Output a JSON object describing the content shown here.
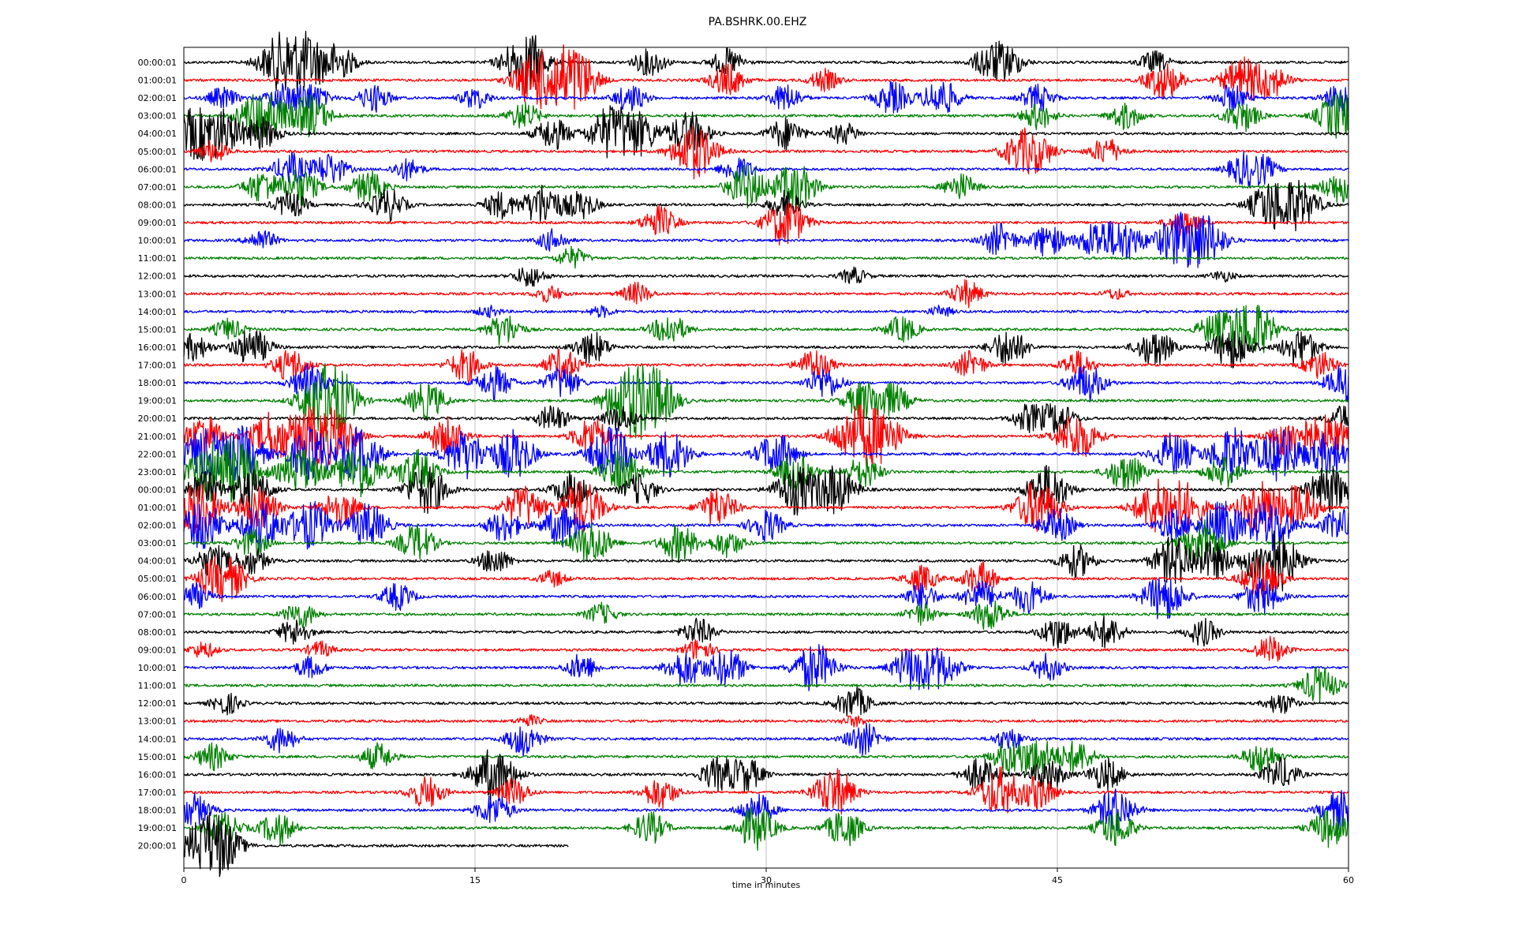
{
  "chart_data": {
    "type": "line",
    "title": "PA.BSHRK.00.EHZ",
    "xlabel": "time in minutes",
    "xlim": [
      0,
      60
    ],
    "xticks": [
      0,
      15,
      30,
      45,
      60
    ],
    "grid": "vertical",
    "color_cycle": [
      "#000000",
      "#ff0000",
      "#0000ff",
      "#008000"
    ],
    "row_labels": [
      "00:00:01",
      "01:00:01",
      "02:00:01",
      "03:00:01",
      "04:00:01",
      "05:00:01",
      "06:00:01",
      "07:00:01",
      "08:00:01",
      "09:00:01",
      "10:00:01",
      "11:00:01",
      "12:00:01",
      "13:00:01",
      "14:00:01",
      "15:00:01",
      "16:00:01",
      "17:00:01",
      "18:00:01",
      "19:00:01",
      "20:00:01",
      "21:00:01",
      "22:00:01",
      "23:00:01",
      "00:00:01",
      "01:00:01",
      "02:00:01",
      "03:00:01",
      "04:00:01",
      "05:00:01",
      "06:00:01",
      "07:00:01",
      "08:00:01",
      "09:00:01",
      "10:00:01",
      "11:00:01",
      "12:00:01",
      "13:00:01",
      "14:00:01",
      "15:00:01",
      "16:00:01",
      "17:00:01",
      "18:00:01",
      "19:00:01",
      "20:00:01"
    ],
    "last_row_end_minute": 19.8,
    "activity": [
      [
        [
          5,
          1
        ],
        [
          6.4,
          0.9
        ],
        [
          8,
          0.6
        ],
        [
          17.3,
          0.8
        ],
        [
          18,
          0.6
        ],
        [
          24,
          0.5
        ],
        [
          28,
          0.5
        ],
        [
          41.5,
          0.6
        ],
        [
          42.5,
          0.5
        ],
        [
          50,
          0.4
        ]
      ],
      [
        [
          18,
          0.9
        ],
        [
          19.5,
          1
        ],
        [
          20.5,
          0.7
        ],
        [
          28,
          0.6
        ],
        [
          33,
          0.4
        ],
        [
          50.5,
          0.7
        ],
        [
          54.5,
          0.8
        ],
        [
          56,
          0.6
        ]
      ],
      [
        [
          2,
          0.4
        ],
        [
          5,
          0.5
        ],
        [
          6.5,
          0.6
        ],
        [
          9.8,
          0.5
        ],
        [
          15,
          0.4
        ],
        [
          23,
          0.5
        ],
        [
          31,
          0.5
        ],
        [
          36.5,
          0.6
        ],
        [
          39,
          0.7
        ],
        [
          44,
          0.5
        ],
        [
          54,
          0.5
        ],
        [
          59.8,
          0.7
        ]
      ],
      [
        [
          3.5,
          0.6
        ],
        [
          4.5,
          0.7
        ],
        [
          6.5,
          0.8
        ],
        [
          17.5,
          0.5
        ],
        [
          44,
          0.5
        ],
        [
          48.5,
          0.5
        ],
        [
          54.5,
          0.6
        ],
        [
          59.5,
          0.9
        ]
      ],
      [
        [
          0.5,
          0.9
        ],
        [
          2,
          0.8
        ],
        [
          4,
          0.6
        ],
        [
          19,
          0.6
        ],
        [
          22,
          1
        ],
        [
          23.5,
          0.7
        ],
        [
          26,
          0.8
        ],
        [
          31,
          0.6
        ],
        [
          34,
          0.4
        ]
      ],
      [
        [
          1.5,
          0.4
        ],
        [
          26.3,
          1
        ],
        [
          43,
          0.6
        ],
        [
          44,
          0.6
        ],
        [
          47.5,
          0.5
        ]
      ],
      [
        [
          5.5,
          0.6
        ],
        [
          7.5,
          0.6
        ],
        [
          11.5,
          0.4
        ],
        [
          28.5,
          0.5
        ],
        [
          54.5,
          0.5
        ],
        [
          55.5,
          0.5
        ]
      ],
      [
        [
          4,
          0.6
        ],
        [
          6,
          0.7
        ],
        [
          9.5,
          0.6
        ],
        [
          29,
          0.8
        ],
        [
          31.5,
          0.9
        ],
        [
          40,
          0.5
        ],
        [
          59.5,
          0.6
        ]
      ],
      [
        [
          5.5,
          0.5
        ],
        [
          10.5,
          0.6
        ],
        [
          16.3,
          0.5
        ],
        [
          18.5,
          0.8
        ],
        [
          20.5,
          0.5
        ],
        [
          31,
          0.5
        ],
        [
          56,
          0.9
        ],
        [
          57.5,
          0.8
        ]
      ],
      [
        [
          24.5,
          0.6
        ],
        [
          31,
          0.9
        ],
        [
          51.5,
          0.5
        ]
      ],
      [
        [
          4,
          0.4
        ],
        [
          19,
          0.4
        ],
        [
          42,
          0.6
        ],
        [
          44.5,
          0.6
        ],
        [
          47,
          0.7
        ],
        [
          48.5,
          0.7
        ],
        [
          51,
          0.8
        ],
        [
          52.5,
          1
        ]
      ],
      [
        [
          20,
          0.4
        ]
      ],
      [
        [
          17.8,
          0.4
        ],
        [
          34.5,
          0.3
        ],
        [
          53.5,
          0.2
        ]
      ],
      [
        [
          18.8,
          0.3
        ],
        [
          23.3,
          0.4
        ],
        [
          40.3,
          0.5
        ],
        [
          48,
          0.2
        ]
      ],
      [
        [
          15.7,
          0.2
        ],
        [
          21.5,
          0.2
        ],
        [
          39,
          0.2
        ]
      ],
      [
        [
          2.3,
          0.4
        ],
        [
          16.5,
          0.6
        ],
        [
          25,
          0.6
        ],
        [
          37,
          0.5
        ],
        [
          53,
          0.5
        ],
        [
          54.5,
          0.9
        ],
        [
          55.5,
          0.6
        ]
      ],
      [
        [
          0.5,
          0.5
        ],
        [
          3.5,
          0.7
        ],
        [
          21,
          0.6
        ],
        [
          42.5,
          0.7
        ],
        [
          50,
          0.7
        ],
        [
          54,
          0.8
        ],
        [
          57.5,
          0.7
        ]
      ],
      [
        [
          5.5,
          0.6
        ],
        [
          14.5,
          0.6
        ],
        [
          19.5,
          0.6
        ],
        [
          32.5,
          0.6
        ],
        [
          40.5,
          0.5
        ],
        [
          46,
          0.5
        ],
        [
          58.5,
          0.5
        ]
      ],
      [
        [
          6.5,
          0.7
        ],
        [
          16,
          0.6
        ],
        [
          19.5,
          0.6
        ],
        [
          33,
          0.6
        ],
        [
          46.5,
          0.7
        ],
        [
          59.8,
          0.7
        ]
      ],
      [
        [
          7,
          1
        ],
        [
          8,
          0.9
        ],
        [
          12.5,
          0.7
        ],
        [
          22.5,
          0.8
        ],
        [
          23.5,
          0.9
        ],
        [
          24.5,
          0.8
        ],
        [
          35,
          0.7
        ],
        [
          36.5,
          0.6
        ]
      ],
      [
        [
          19,
          0.5
        ],
        [
          22.5,
          0.5
        ],
        [
          43.5,
          0.5
        ],
        [
          45,
          0.6
        ],
        [
          59.8,
          0.5
        ]
      ],
      [
        [
          1,
          0.8
        ],
        [
          4.5,
          0.9
        ],
        [
          6.5,
          1
        ],
        [
          8,
          0.8
        ],
        [
          13.5,
          0.7
        ],
        [
          21,
          0.7
        ],
        [
          34.5,
          1
        ],
        [
          36,
          0.9
        ],
        [
          46,
          0.9
        ],
        [
          57,
          0.9
        ],
        [
          59,
          0.8
        ]
      ],
      [
        [
          1,
          0.9
        ],
        [
          3,
          1
        ],
        [
          6.5,
          1
        ],
        [
          9,
          1
        ],
        [
          14.5,
          0.9
        ],
        [
          17,
          0.9
        ],
        [
          22,
          1
        ],
        [
          25,
          0.9
        ],
        [
          30.5,
          0.8
        ],
        [
          51,
          0.8
        ],
        [
          54,
          1
        ],
        [
          56.5,
          1
        ],
        [
          59,
          0.8
        ]
      ],
      [
        [
          1.2,
          1
        ],
        [
          2.8,
          1
        ],
        [
          6,
          0.9
        ],
        [
          9,
          1
        ],
        [
          12,
          0.8
        ],
        [
          22.5,
          0.8
        ],
        [
          31.5,
          0.7
        ],
        [
          35,
          0.6
        ],
        [
          48.5,
          0.7
        ],
        [
          53.5,
          0.6
        ]
      ],
      [
        [
          1,
          0.7
        ],
        [
          3.5,
          0.8
        ],
        [
          12.5,
          0.9
        ],
        [
          20,
          0.7
        ],
        [
          23.5,
          0.6
        ],
        [
          31.5,
          0.9
        ],
        [
          33.5,
          0.9
        ],
        [
          44.5,
          0.9
        ],
        [
          59,
          0.9
        ]
      ],
      [
        [
          0.7,
          1
        ],
        [
          3.8,
          0.8
        ],
        [
          8,
          0.7
        ],
        [
          17.5,
          0.8
        ],
        [
          20.5,
          1
        ],
        [
          27.5,
          0.7
        ],
        [
          44,
          1
        ],
        [
          50,
          0.9
        ],
        [
          51.5,
          0.9
        ],
        [
          55.5,
          1
        ],
        [
          57.5,
          0.8
        ]
      ],
      [
        [
          1,
          0.9
        ],
        [
          4,
          0.9
        ],
        [
          6.5,
          0.9
        ],
        [
          9.5,
          0.8
        ],
        [
          16.5,
          0.6
        ],
        [
          19.5,
          0.8
        ],
        [
          30,
          0.6
        ],
        [
          45,
          0.6
        ],
        [
          51,
          0.6
        ],
        [
          53.5,
          0.9
        ],
        [
          56,
          1
        ],
        [
          59.5,
          0.6
        ]
      ],
      [
        [
          3.5,
          0.5
        ],
        [
          12,
          0.7
        ],
        [
          21,
          0.8
        ],
        [
          25.5,
          0.7
        ],
        [
          28,
          0.5
        ],
        [
          52.5,
          0.9
        ]
      ],
      [
        [
          1.5,
          0.6
        ],
        [
          3.5,
          0.5
        ],
        [
          16,
          0.5
        ],
        [
          46,
          0.6
        ],
        [
          51,
          0.9
        ],
        [
          53,
          0.7
        ],
        [
          55.5,
          0.8
        ],
        [
          56.5,
          0.9
        ]
      ],
      [
        [
          1.5,
          0.6
        ],
        [
          2.5,
          0.6
        ],
        [
          19,
          0.3
        ],
        [
          38,
          0.5
        ],
        [
          41,
          0.6
        ],
        [
          55.5,
          0.8
        ]
      ],
      [
        [
          0.5,
          0.5
        ],
        [
          11,
          0.5
        ],
        [
          38,
          0.5
        ],
        [
          41,
          0.6
        ],
        [
          43.5,
          0.6
        ],
        [
          50.5,
          0.9
        ],
        [
          55.5,
          0.7
        ]
      ],
      [
        [
          6,
          0.5
        ],
        [
          21.5,
          0.4
        ],
        [
          38,
          0.4
        ],
        [
          41.5,
          0.6
        ]
      ],
      [
        [
          5.7,
          0.5
        ],
        [
          26.5,
          0.5
        ],
        [
          45,
          0.6
        ],
        [
          47.5,
          0.6
        ],
        [
          52.5,
          0.5
        ]
      ],
      [
        [
          1,
          0.3
        ],
        [
          7,
          0.3
        ],
        [
          26.5,
          0.4
        ],
        [
          56,
          0.5
        ]
      ],
      [
        [
          6.5,
          0.4
        ],
        [
          20.5,
          0.5
        ],
        [
          25.8,
          0.7
        ],
        [
          28,
          0.7
        ],
        [
          32.5,
          0.9
        ],
        [
          37.5,
          0.8
        ],
        [
          39,
          0.7
        ],
        [
          44.5,
          0.5
        ]
      ],
      [
        [
          58.5,
          0.7
        ]
      ],
      [
        [
          2.2,
          0.4
        ],
        [
          34.5,
          0.6
        ],
        [
          56.5,
          0.4
        ]
      ],
      [
        [
          17.8,
          0.2
        ],
        [
          34.5,
          0.2
        ]
      ],
      [
        [
          5,
          0.5
        ],
        [
          17.5,
          0.6
        ],
        [
          35,
          0.6
        ],
        [
          42.5,
          0.4
        ]
      ],
      [
        [
          1.5,
          0.5
        ],
        [
          10,
          0.5
        ],
        [
          42.5,
          0.6
        ],
        [
          44,
          0.7
        ],
        [
          46,
          0.6
        ],
        [
          55.5,
          0.6
        ]
      ],
      [
        [
          16,
          1
        ],
        [
          27.5,
          0.6
        ],
        [
          29,
          0.6
        ],
        [
          41,
          0.6
        ],
        [
          44.5,
          0.6
        ],
        [
          47.5,
          0.6
        ],
        [
          56.5,
          0.6
        ]
      ],
      [
        [
          12.5,
          0.6
        ],
        [
          17,
          0.5
        ],
        [
          24.5,
          0.6
        ],
        [
          33.5,
          0.9
        ],
        [
          42,
          0.9
        ],
        [
          44,
          0.6
        ]
      ],
      [
        [
          0.5,
          0.6
        ],
        [
          16,
          0.6
        ],
        [
          29.5,
          0.6
        ],
        [
          48,
          0.8
        ],
        [
          59.5,
          0.7
        ]
      ],
      [
        [
          2,
          0.6
        ],
        [
          4.8,
          0.6
        ],
        [
          24,
          0.6
        ],
        [
          29.5,
          0.8
        ],
        [
          34,
          0.7
        ],
        [
          48,
          0.7
        ],
        [
          59,
          0.7
        ]
      ],
      [
        [
          1,
          0.9
        ],
        [
          2,
          0.8
        ]
      ]
    ]
  }
}
